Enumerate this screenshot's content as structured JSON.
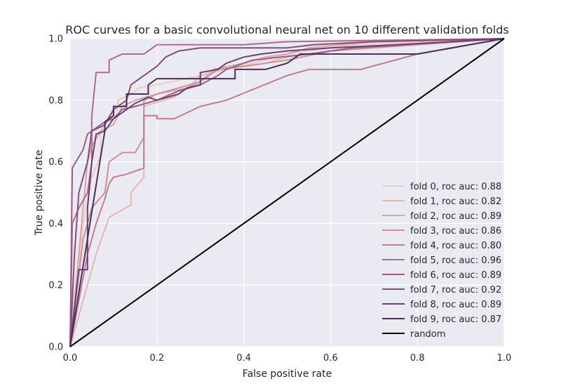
{
  "chart_data": {
    "type": "line",
    "title": "ROC curves for a basic convolutional neural net on 10 different validation folds",
    "xlabel": "False positive rate",
    "ylabel": "True positive rate",
    "xlim": [
      0.0,
      1.0
    ],
    "ylim": [
      0.0,
      1.0
    ],
    "x_ticks": [
      "0.0",
      "0.2",
      "0.4",
      "0.6",
      "0.8",
      "1.0"
    ],
    "y_ticks": [
      "0.0",
      "0.2",
      "0.4",
      "0.6",
      "0.8",
      "1.0"
    ],
    "grid": true,
    "legend_position": "lower-right",
    "series": [
      {
        "name": "fold 0, roc auc: 0.88",
        "color": "#eccbc3",
        "points": [
          [
            0,
            0
          ],
          [
            0.03,
            0.4
          ],
          [
            0.05,
            0.55
          ],
          [
            0.07,
            0.62
          ],
          [
            0.07,
            0.7
          ],
          [
            0.09,
            0.75
          ],
          [
            0.11,
            0.77
          ],
          [
            0.11,
            0.8
          ],
          [
            0.14,
            0.82
          ],
          [
            0.16,
            0.84
          ],
          [
            0.2,
            0.85
          ],
          [
            0.3,
            0.88
          ],
          [
            0.36,
            0.9
          ],
          [
            0.42,
            0.92
          ],
          [
            0.5,
            0.95
          ],
          [
            0.55,
            0.96
          ],
          [
            0.65,
            0.98
          ],
          [
            0.8,
            0.99
          ],
          [
            1,
            1
          ]
        ]
      },
      {
        "name": "fold 1, roc auc: 0.82",
        "color": "#e6b7b1",
        "points": [
          [
            0,
            0
          ],
          [
            0.06,
            0.3
          ],
          [
            0.09,
            0.42
          ],
          [
            0.14,
            0.46
          ],
          [
            0.14,
            0.5
          ],
          [
            0.17,
            0.55
          ],
          [
            0.17,
            0.65
          ],
          [
            0.17,
            0.78
          ],
          [
            0.24,
            0.81
          ],
          [
            0.28,
            0.85
          ],
          [
            0.3,
            0.88
          ],
          [
            0.35,
            0.9
          ],
          [
            0.45,
            0.92
          ],
          [
            0.5,
            0.94
          ],
          [
            0.6,
            0.96
          ],
          [
            0.75,
            0.98
          ],
          [
            1,
            1
          ]
        ]
      },
      {
        "name": "fold 2, roc auc: 0.89",
        "color": "#dca3a3",
        "points": [
          [
            0,
            0
          ],
          [
            0.04,
            0.6
          ],
          [
            0.05,
            0.65
          ],
          [
            0.07,
            0.7
          ],
          [
            0.1,
            0.72
          ],
          [
            0.12,
            0.78
          ],
          [
            0.15,
            0.8
          ],
          [
            0.2,
            0.82
          ],
          [
            0.27,
            0.84
          ],
          [
            0.3,
            0.86
          ],
          [
            0.33,
            0.9
          ],
          [
            0.4,
            0.92
          ],
          [
            0.45,
            0.94
          ],
          [
            0.5,
            0.95
          ],
          [
            0.55,
            0.97
          ],
          [
            0.7,
            0.99
          ],
          [
            1,
            1
          ]
        ]
      },
      {
        "name": "fold 3, roc auc: 0.86",
        "color": "#d18f98",
        "points": [
          [
            0,
            0
          ],
          [
            0.03,
            0.35
          ],
          [
            0.05,
            0.45
          ],
          [
            0.08,
            0.5
          ],
          [
            0.09,
            0.6
          ],
          [
            0.12,
            0.63
          ],
          [
            0.15,
            0.63
          ],
          [
            0.17,
            0.68
          ],
          [
            0.17,
            0.8
          ],
          [
            0.2,
            0.82
          ],
          [
            0.25,
            0.84
          ],
          [
            0.3,
            0.86
          ],
          [
            0.34,
            0.9
          ],
          [
            0.4,
            0.91
          ],
          [
            0.5,
            0.93
          ],
          [
            0.6,
            0.96
          ],
          [
            1,
            1
          ]
        ]
      },
      {
        "name": "fold 4, roc auc: 0.80",
        "color": "#c37b90",
        "points": [
          [
            0,
            0
          ],
          [
            0.02,
            0.15
          ],
          [
            0.04,
            0.3
          ],
          [
            0.06,
            0.4
          ],
          [
            0.08,
            0.48
          ],
          [
            0.09,
            0.53
          ],
          [
            0.1,
            0.55
          ],
          [
            0.13,
            0.56
          ],
          [
            0.17,
            0.58
          ],
          [
            0.17,
            0.75
          ],
          [
            0.2,
            0.75
          ],
          [
            0.2,
            0.74
          ],
          [
            0.24,
            0.74
          ],
          [
            0.3,
            0.78
          ],
          [
            0.36,
            0.8
          ],
          [
            0.43,
            0.84
          ],
          [
            0.5,
            0.88
          ],
          [
            0.55,
            0.9
          ],
          [
            0.67,
            0.9
          ],
          [
            0.8,
            0.95
          ],
          [
            1,
            1
          ]
        ]
      },
      {
        "name": "fold 5, roc auc: 0.96",
        "color": "#b06a8c",
        "points": [
          [
            0,
            0
          ],
          [
            0.005,
            0.4
          ],
          [
            0.02,
            0.45
          ],
          [
            0.04,
            0.5
          ],
          [
            0.05,
            0.6
          ],
          [
            0.05,
            0.75
          ],
          [
            0.06,
            0.89
          ],
          [
            0.09,
            0.89
          ],
          [
            0.09,
            0.93
          ],
          [
            0.12,
            0.95
          ],
          [
            0.17,
            0.95
          ],
          [
            0.2,
            0.98
          ],
          [
            0.4,
            0.98
          ],
          [
            0.5,
            0.99
          ],
          [
            1,
            1
          ]
        ]
      },
      {
        "name": "fold 6, roc auc: 0.89",
        "color": "#9b5c87",
        "points": [
          [
            0,
            0
          ],
          [
            0.005,
            0.58
          ],
          [
            0.03,
            0.64
          ],
          [
            0.04,
            0.69
          ],
          [
            0.06,
            0.71
          ],
          [
            0.08,
            0.73
          ],
          [
            0.1,
            0.74
          ],
          [
            0.12,
            0.77
          ],
          [
            0.15,
            0.78
          ],
          [
            0.2,
            0.8
          ],
          [
            0.25,
            0.83
          ],
          [
            0.3,
            0.85
          ],
          [
            0.34,
            0.88
          ],
          [
            0.36,
            0.9
          ],
          [
            0.42,
            0.93
          ],
          [
            0.55,
            0.95
          ],
          [
            0.65,
            0.97
          ],
          [
            1,
            1
          ]
        ]
      },
      {
        "name": "fold 7, roc auc: 0.92",
        "color": "#834e7d",
        "points": [
          [
            0,
            0
          ],
          [
            0.01,
            0.3
          ],
          [
            0.02,
            0.5
          ],
          [
            0.04,
            0.6
          ],
          [
            0.05,
            0.7
          ],
          [
            0.08,
            0.72
          ],
          [
            0.1,
            0.77
          ],
          [
            0.13,
            0.8
          ],
          [
            0.14,
            0.85
          ],
          [
            0.17,
            0.88
          ],
          [
            0.2,
            0.91
          ],
          [
            0.22,
            0.94
          ],
          [
            0.25,
            0.96
          ],
          [
            0.3,
            0.97
          ],
          [
            0.4,
            0.97
          ],
          [
            0.5,
            0.97
          ],
          [
            0.56,
            0.98
          ],
          [
            0.7,
            0.99
          ],
          [
            1,
            1
          ]
        ]
      },
      {
        "name": "fold 8, roc auc: 0.89",
        "color": "#6a4070",
        "points": [
          [
            0,
            0
          ],
          [
            0.02,
            0.25
          ],
          [
            0.04,
            0.25
          ],
          [
            0.04,
            0.45
          ],
          [
            0.05,
            0.6
          ],
          [
            0.06,
            0.69
          ],
          [
            0.08,
            0.7
          ],
          [
            0.09,
            0.72
          ],
          [
            0.1,
            0.74
          ],
          [
            0.12,
            0.76
          ],
          [
            0.15,
            0.79
          ],
          [
            0.18,
            0.81
          ],
          [
            0.2,
            0.8
          ],
          [
            0.25,
            0.82
          ],
          [
            0.27,
            0.84
          ],
          [
            0.3,
            0.85
          ],
          [
            0.3,
            0.89
          ],
          [
            0.34,
            0.9
          ],
          [
            0.36,
            0.92
          ],
          [
            0.4,
            0.94
          ],
          [
            0.44,
            0.95
          ],
          [
            0.5,
            0.96
          ],
          [
            0.6,
            0.97
          ],
          [
            0.75,
            0.98
          ],
          [
            1,
            1
          ]
        ]
      },
      {
        "name": "fold 9, roc auc: 0.87",
        "color": "#4c2e58",
        "points": [
          [
            0,
            0
          ],
          [
            0.08,
            0.7
          ],
          [
            0.08,
            0.73
          ],
          [
            0.1,
            0.75
          ],
          [
            0.1,
            0.78
          ],
          [
            0.13,
            0.78
          ],
          [
            0.13,
            0.82
          ],
          [
            0.18,
            0.82
          ],
          [
            0.18,
            0.85
          ],
          [
            0.2,
            0.87
          ],
          [
            0.25,
            0.87
          ],
          [
            0.3,
            0.87
          ],
          [
            0.38,
            0.87
          ],
          [
            0.38,
            0.9
          ],
          [
            0.45,
            0.9
          ],
          [
            0.5,
            0.92
          ],
          [
            0.53,
            0.95
          ],
          [
            0.6,
            0.95
          ],
          [
            0.8,
            0.95
          ],
          [
            1,
            1
          ]
        ]
      },
      {
        "name": "random",
        "color": "#000000",
        "points": [
          [
            0,
            0
          ],
          [
            1,
            1
          ]
        ]
      }
    ]
  }
}
